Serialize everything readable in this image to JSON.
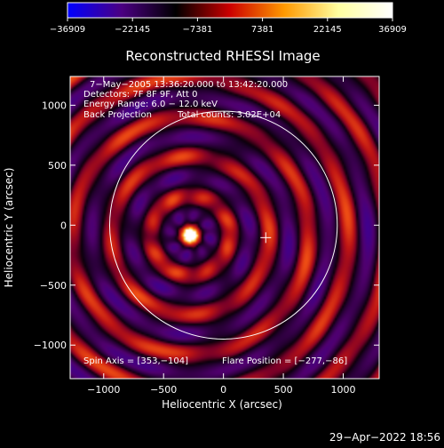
{
  "chart_data": {
    "type": "heatmap",
    "title": "Reconstructed RHESSI Image",
    "xlabel": "Heliocentric X (arcsec)",
    "ylabel": "Heliocentric Y (arcsec)",
    "xlim": [
      -1280,
      1300
    ],
    "ylim": [
      -1280,
      1240
    ],
    "xticks": [
      -1000,
      -500,
      0,
      500,
      1000
    ],
    "xtick_labels": [
      "−1000",
      "−500",
      "0",
      "500",
      "1000"
    ],
    "yticks": [
      -1000,
      -500,
      0,
      500,
      1000
    ],
    "ytick_labels": [
      "−1000",
      "−500",
      "0",
      "500",
      "1000"
    ],
    "colorbar": {
      "range": [
        -36909,
        36909
      ],
      "tick_values": [
        -36909,
        -22145,
        -7381,
        7381,
        22145,
        36909
      ],
      "tick_labels": [
        "−36909",
        "−22145",
        "−7381",
        "7381",
        "22145",
        "36909"
      ],
      "colors": [
        "#0000ff",
        "#4b0082",
        "#000000",
        "#cc0000",
        "#ff9900",
        "#ffffa0",
        "#ffffff"
      ]
    },
    "annotations": [
      "7−May−2005 13:36:20.000 to 13:42:20.000",
      "Detectors: 7F 8F 9F, Att 0",
      "Energy Range: 6.0 − 12.0 keV",
      "Back Projection",
      "Total counts: 3.02E+04"
    ],
    "spin_axis_label": "Spin Axis = [353,−104]",
    "flare_position_label": "Flare Position = [−277,−86]",
    "flare_position": [
      -277,
      -86
    ],
    "spin_axis": [
      353,
      -104
    ],
    "solar_limb_radius": 950,
    "ring_period": 330,
    "grid": false
  },
  "timestamp": "29−Apr−2022 18:56"
}
